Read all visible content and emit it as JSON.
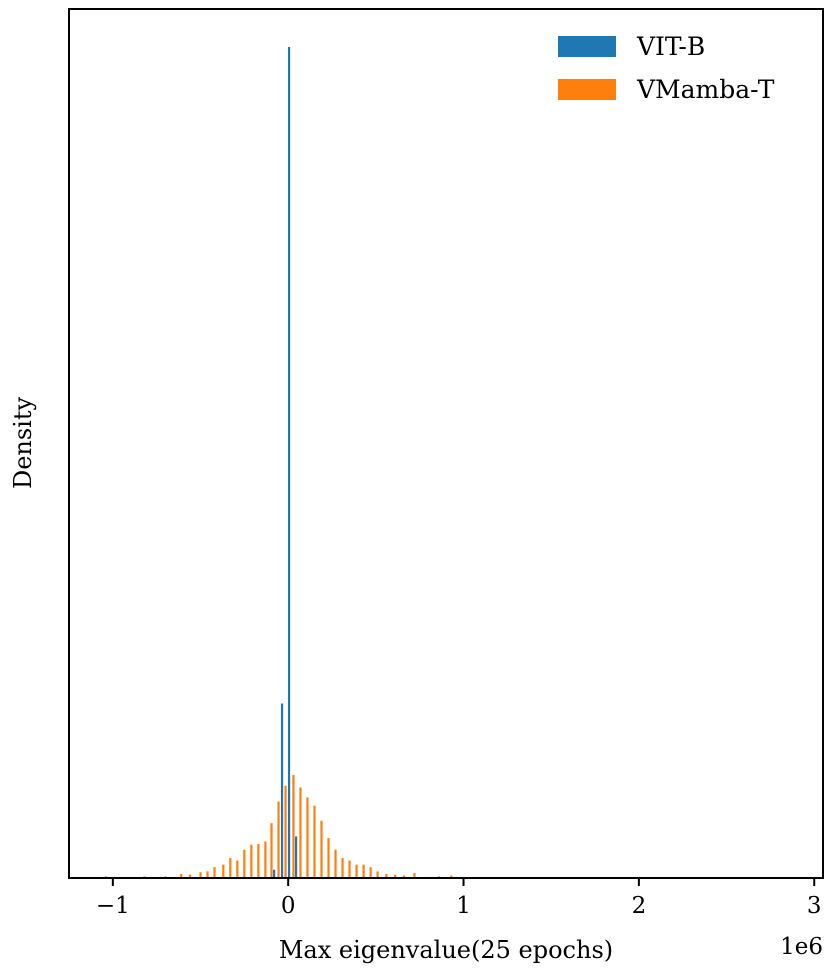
{
  "chart_data": {
    "type": "histogram",
    "title": "",
    "xlabel": "Max eigenvalue(25 epochs)",
    "ylabel": "Density",
    "x_offset_label": "1e6",
    "xlim": [
      -1.25,
      3.05
    ],
    "ylim": [
      0,
      1.0
    ],
    "x_ticks": [
      -1,
      0,
      1,
      2,
      3
    ],
    "x_tick_labels": [
      "−1",
      "0",
      "1",
      "2",
      "3"
    ],
    "y_ticks_shown": false,
    "grid": false,
    "legend_placement": "top-right",
    "bar_width": 0.014,
    "series": [
      {
        "name": "VIT-B",
        "color": "#1f77b4",
        "x": [
          -0.08,
          -0.035,
          0.005,
          0.045
        ],
        "height": [
          0.01,
          0.21,
          1.0,
          0.05
        ]
      },
      {
        "name": "VMamba-T",
        "color": "#ff7f0e",
        "x": [
          -1.04,
          -0.82,
          -0.7,
          -0.61,
          -0.56,
          -0.5,
          -0.46,
          -0.42,
          -0.37,
          -0.33,
          -0.29,
          -0.25,
          -0.21,
          -0.17,
          -0.13,
          -0.095,
          -0.055,
          -0.015,
          0.03,
          0.07,
          0.11,
          0.15,
          0.19,
          0.23,
          0.27,
          0.31,
          0.35,
          0.39,
          0.43,
          0.47,
          0.51,
          0.56,
          0.61,
          0.66,
          0.72,
          0.86,
          0.93
        ],
        "height": [
          0.002,
          0.002,
          0.002,
          0.005,
          0.004,
          0.007,
          0.008,
          0.013,
          0.016,
          0.024,
          0.021,
          0.034,
          0.04,
          0.041,
          0.044,
          0.066,
          0.092,
          0.111,
          0.124,
          0.109,
          0.097,
          0.087,
          0.069,
          0.048,
          0.034,
          0.024,
          0.021,
          0.016,
          0.016,
          0.013,
          0.008,
          0.005,
          0.004,
          0.003,
          0.006,
          0.002,
          0.003
        ]
      }
    ]
  }
}
